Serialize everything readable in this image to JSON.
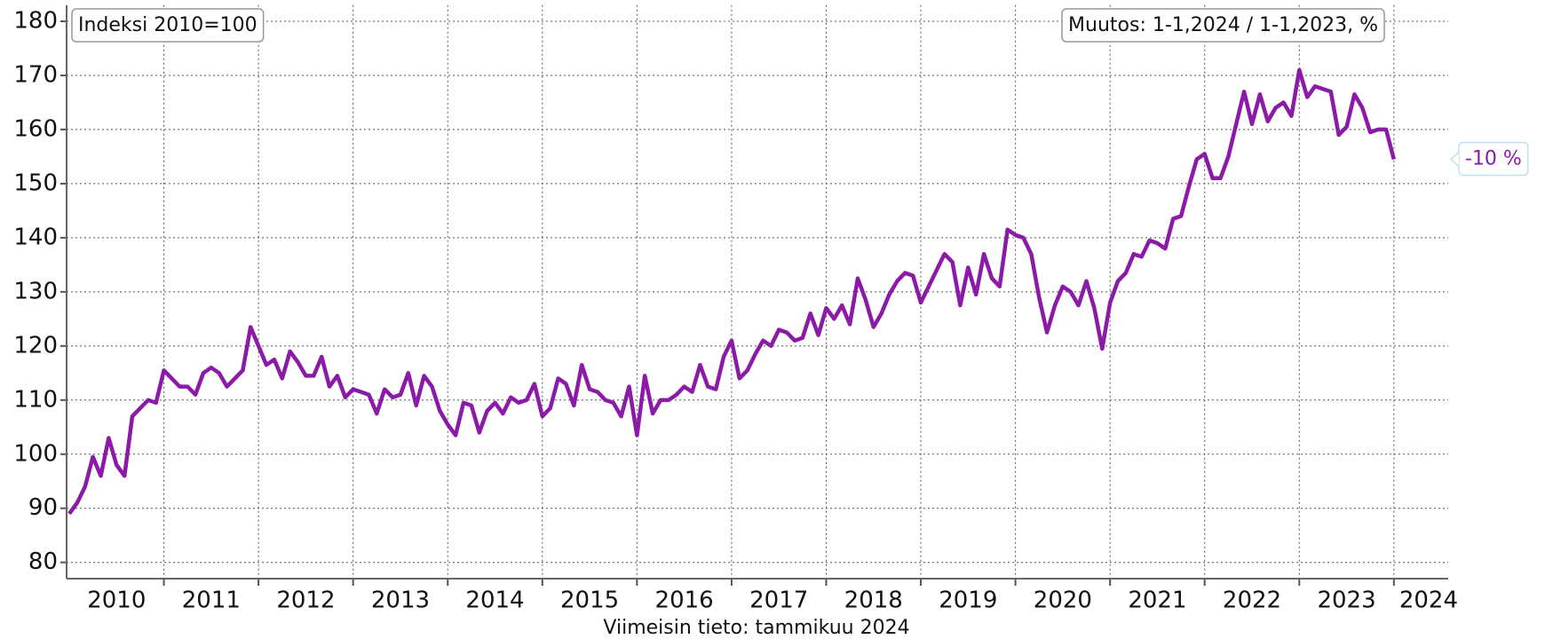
{
  "chart_data": {
    "type": "line",
    "annotations": [
      "Indeksi 2010=100",
      "Muutos: 1-1,2024 / 1-1,2023, %",
      "-10 %"
    ],
    "footnote": "Viimeisin tieto: tammikuu 2024",
    "categories": [
      null,
      null,
      null,
      null,
      null,
      null,
      "2010",
      null,
      null,
      null,
      null,
      null,
      null,
      null,
      null,
      null,
      null,
      null,
      "2011",
      null,
      null,
      null,
      null,
      null,
      null,
      null,
      null,
      null,
      null,
      null,
      "2012",
      null,
      null,
      null,
      null,
      null,
      null,
      null,
      null,
      null,
      null,
      null,
      "2013",
      null,
      null,
      null,
      null,
      null,
      null,
      null,
      null,
      null,
      null,
      null,
      "2014",
      null,
      null,
      null,
      null,
      null,
      null,
      null,
      null,
      null,
      null,
      null,
      "2015",
      null,
      null,
      null,
      null,
      null,
      null,
      null,
      null,
      null,
      null,
      null,
      "2016",
      null,
      null,
      null,
      null,
      null,
      null,
      null,
      null,
      null,
      null,
      null,
      "2017",
      null,
      null,
      null,
      null,
      null,
      null,
      null,
      null,
      null,
      null,
      null,
      "2018",
      null,
      null,
      null,
      null,
      null,
      null,
      null,
      null,
      null,
      null,
      null,
      "2019",
      null,
      null,
      null,
      null,
      null,
      null,
      null,
      null,
      null,
      null,
      null,
      "2020",
      null,
      null,
      null,
      null,
      null,
      null,
      null,
      null,
      null,
      null,
      null,
      "2021",
      null,
      null,
      null,
      null,
      null,
      null,
      null,
      null,
      null,
      null,
      null,
      "2022",
      null,
      null,
      null,
      null,
      null,
      null,
      null,
      null,
      null,
      null,
      null,
      "2023",
      null,
      null,
      null,
      null,
      null,
      "2024"
    ],
    "series": [
      {
        "color": "#8b1aa8",
        "values": [
          89,
          91,
          94,
          99.5,
          96,
          103,
          98,
          96,
          107,
          108.5,
          110,
          109.5,
          115.5,
          114,
          112.5,
          112.5,
          111,
          115,
          116,
          115,
          112.5,
          114,
          115.5,
          123.5,
          120,
          116.5,
          117.5,
          114,
          119,
          117,
          114.5,
          114.5,
          118,
          112.5,
          114.5,
          110.5,
          112,
          111.5,
          111,
          107.5,
          112,
          110.5,
          111,
          115,
          109,
          114.5,
          112.5,
          108,
          105.5,
          103.5,
          109.5,
          109,
          104,
          108,
          109.5,
          107.5,
          110.5,
          109.5,
          110,
          113,
          107,
          108.5,
          114,
          113,
          109,
          116.5,
          112,
          111.5,
          110,
          109.5,
          107,
          112.5,
          103.5,
          114.5,
          107.5,
          110,
          110,
          111,
          112.5,
          111.5,
          116.5,
          112.5,
          112,
          118,
          121,
          114,
          115.5,
          118.5,
          121,
          120,
          123,
          122.5,
          121,
          121.5,
          126,
          122,
          127,
          125,
          127.5,
          124,
          132.5,
          128.5,
          123.5,
          126,
          129.5,
          132,
          133.5,
          133,
          128,
          131,
          134,
          137,
          135.5,
          127.5,
          134.5,
          129.5,
          137,
          132.5,
          131,
          141.5,
          140.5,
          140,
          137,
          129,
          122.5,
          127.5,
          131,
          130,
          127.5,
          132,
          127,
          119.5,
          128,
          132,
          133.5,
          137,
          136.5,
          139.5,
          139,
          138,
          143.5,
          144,
          149.5,
          154.5,
          155.5,
          151,
          151,
          155,
          161,
          167,
          161,
          166.5,
          161.5,
          164,
          165,
          162.5,
          171,
          166,
          168,
          167.5,
          167,
          159,
          160.5,
          166.5,
          164,
          159.5,
          160,
          160,
          154.5
        ]
      }
    ],
    "ylim": [
      77,
      183
    ],
    "yticks": [
      80,
      90,
      100,
      110,
      120,
      130,
      140,
      150,
      160,
      170,
      180
    ],
    "grid": true
  }
}
